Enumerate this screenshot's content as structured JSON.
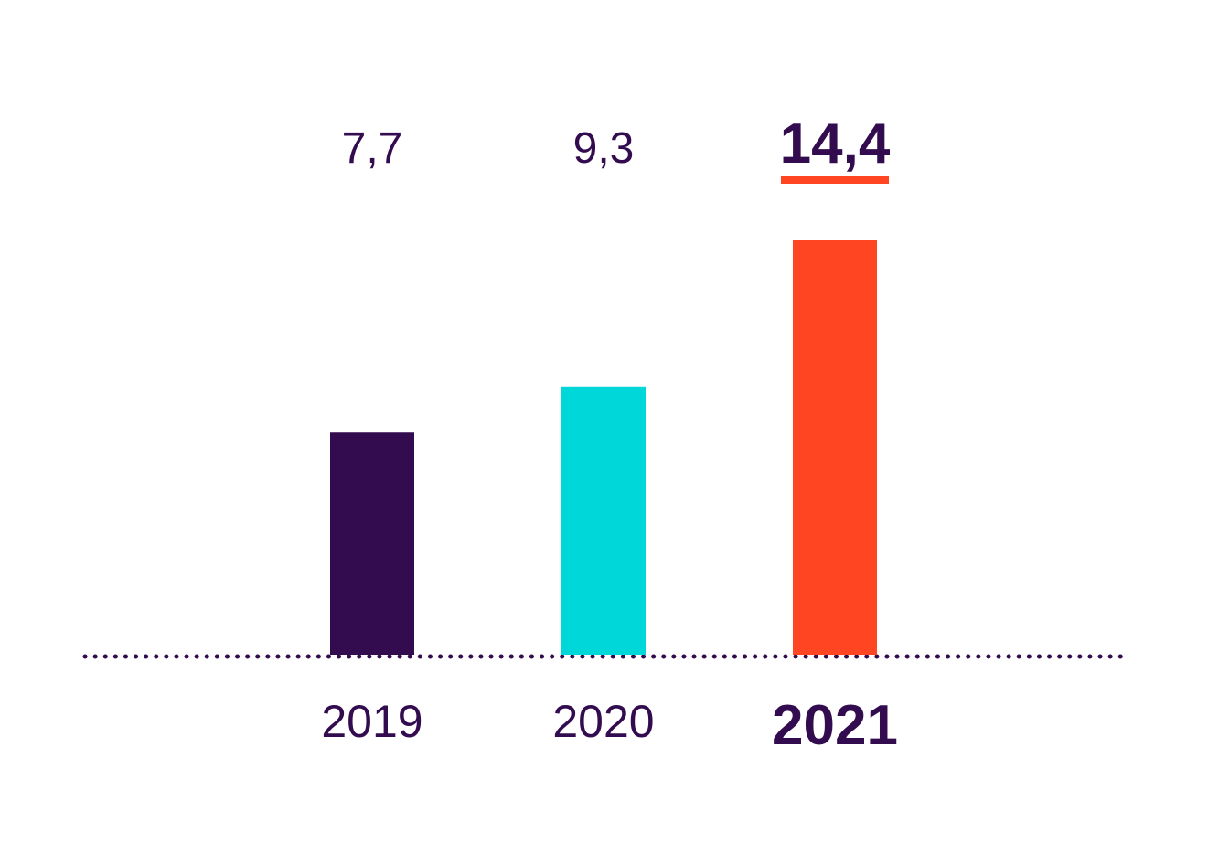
{
  "chart_data": {
    "type": "bar",
    "title": "",
    "xlabel": "",
    "ylabel": "",
    "categories": [
      "2019",
      "2020",
      "2021"
    ],
    "values": [
      7.7,
      9.3,
      14.4
    ],
    "value_labels": [
      "7,7",
      "9,3",
      "14,4"
    ],
    "highlight_index": 2,
    "ylim": [
      0,
      15
    ],
    "grid": false,
    "legend": "none",
    "colors": [
      "#330c4f",
      "#00d7d9",
      "#ff4521"
    ],
    "baseline_color": "#330c4f",
    "highlight_underline_color": "#ff4521"
  }
}
